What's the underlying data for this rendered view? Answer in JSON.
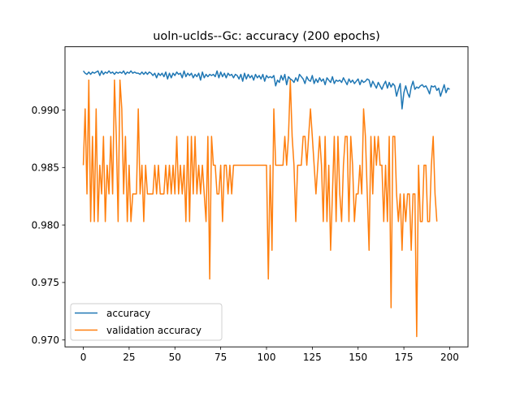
{
  "chart_data": {
    "type": "line",
    "title": "uoln-uclds--Gc: accuracy (200 epochs)",
    "xlabel": "",
    "ylabel": "",
    "xlim": [
      -10,
      210
    ],
    "ylim": [
      0.9694,
      0.9955
    ],
    "xticks": [
      0,
      25,
      50,
      75,
      100,
      125,
      150,
      175,
      200
    ],
    "yticks": [
      0.97,
      0.975,
      0.98,
      0.985,
      0.99
    ],
    "ytick_labels": [
      "0.970",
      "0.975",
      "0.980",
      "0.985",
      "0.990"
    ],
    "grid": false,
    "legend_position": "lower-left",
    "series": [
      {
        "name": "accuracy",
        "color": "#1f77b4",
        "values": [
          0.9934,
          0.9932,
          0.9931,
          0.9933,
          0.9931,
          0.9933,
          0.9932,
          0.9933,
          0.9934,
          0.993,
          0.9934,
          0.9931,
          0.9933,
          0.9932,
          0.9934,
          0.9932,
          0.9933,
          0.9931,
          0.9933,
          0.9932,
          0.9933,
          0.9932,
          0.9934,
          0.9931,
          0.9933,
          0.9932,
          0.9934,
          0.9932,
          0.9933,
          0.9932,
          0.9932,
          0.9931,
          0.9933,
          0.9931,
          0.9933,
          0.9931,
          0.9933,
          0.9932,
          0.993,
          0.9932,
          0.9928,
          0.9932,
          0.993,
          0.9932,
          0.9929,
          0.9933,
          0.9927,
          0.9932,
          0.9928,
          0.9932,
          0.993,
          0.9933,
          0.9931,
          0.9932,
          0.9928,
          0.9934,
          0.9929,
          0.9932,
          0.993,
          0.9932,
          0.9928,
          0.9931,
          0.9929,
          0.9932,
          0.9926,
          0.9933,
          0.9928,
          0.9931,
          0.9929,
          0.9931,
          0.993,
          0.9931,
          0.9929,
          0.9934,
          0.9928,
          0.9933,
          0.9929,
          0.9932,
          0.9928,
          0.9932,
          0.993,
          0.9931,
          0.9928,
          0.9931,
          0.993,
          0.9927,
          0.9931,
          0.9925,
          0.9932,
          0.9927,
          0.9931,
          0.9928,
          0.993,
          0.9926,
          0.9931,
          0.9928,
          0.993,
          0.9927,
          0.9931,
          0.9925,
          0.993,
          0.9928,
          0.9929,
          0.9928,
          0.993,
          0.9921,
          0.9926,
          0.9924,
          0.993,
          0.9926,
          0.9931,
          0.9922,
          0.9929,
          0.9927,
          0.9926,
          0.9924,
          0.9928,
          0.9925,
          0.9931,
          0.9929,
          0.9927,
          0.9923,
          0.9929,
          0.9926,
          0.9925,
          0.993,
          0.9923,
          0.9927,
          0.9924,
          0.9928,
          0.9925,
          0.9927,
          0.9922,
          0.9928,
          0.9926,
          0.9924,
          0.9929,
          0.9923,
          0.9926,
          0.9925,
          0.9926,
          0.9924,
          0.9928,
          0.9925,
          0.9922,
          0.9927,
          0.9924,
          0.9926,
          0.9923,
          0.9925,
          0.9927,
          0.9922,
          0.9926,
          0.9924,
          0.9925,
          0.9927,
          0.9926,
          0.992,
          0.9925,
          0.9922,
          0.9919,
          0.9924,
          0.9921,
          0.9918,
          0.9922,
          0.9925,
          0.9919,
          0.9924,
          0.992,
          0.9923,
          0.9921,
          0.9912,
          0.9918,
          0.9923,
          0.9901,
          0.9915,
          0.9921,
          0.9915,
          0.9911,
          0.992,
          0.9925,
          0.9918,
          0.992,
          0.9919,
          0.9921,
          0.9922,
          0.992,
          0.9921,
          0.9918,
          0.9914,
          0.9921,
          0.992,
          0.9921,
          0.9917,
          0.9919,
          0.9912,
          0.9917,
          0.9922,
          0.9915,
          0.9919,
          0.9918
        ]
      },
      {
        "name": "validation accuracy",
        "color": "#ff7f0e",
        "values": [
          0.9852,
          0.9901,
          0.9827,
          0.9926,
          0.9803,
          0.9877,
          0.9803,
          0.9901,
          0.9803,
          0.9852,
          0.9827,
          0.9877,
          0.9803,
          0.9852,
          0.9827,
          0.9877,
          0.9827,
          0.9926,
          0.9877,
          0.9803,
          0.9926,
          0.9901,
          0.9827,
          0.9877,
          0.9803,
          0.9852,
          0.9803,
          0.9827,
          0.9827,
          0.9827,
          0.9901,
          0.9827,
          0.9852,
          0.9803,
          0.9852,
          0.9827,
          0.9827,
          0.9827,
          0.9827,
          0.9852,
          0.9827,
          0.9852,
          0.9827,
          0.9827,
          0.9827,
          0.9852,
          0.9827,
          0.9852,
          0.9827,
          0.9852,
          0.9827,
          0.9877,
          0.9827,
          0.9852,
          0.9827,
          0.9852,
          0.9803,
          0.9877,
          0.9803,
          0.9877,
          0.9827,
          0.9877,
          0.9827,
          0.9852,
          0.9827,
          0.9852,
          0.9827,
          0.9803,
          0.9877,
          0.9753,
          0.9877,
          0.9852,
          0.9852,
          0.9827,
          0.9827,
          0.9852,
          0.9803,
          0.9852,
          0.9852,
          0.9827,
          0.9852,
          0.9827,
          0.9852,
          0.9852,
          0.9852,
          0.9852,
          0.9852,
          0.9852,
          0.9852,
          0.9852,
          0.9852,
          0.9852,
          0.9852,
          0.9852,
          0.9852,
          0.9852,
          0.9852,
          0.9852,
          0.9852,
          0.9852,
          0.9852,
          0.9753,
          0.9852,
          0.9778,
          0.9901,
          0.9852,
          0.9852,
          0.9852,
          0.9852,
          0.9852,
          0.9877,
          0.9852,
          0.9877,
          0.9926,
          0.9877,
          0.9852,
          0.9803,
          0.9852,
          0.9852,
          0.9852,
          0.9877,
          0.9877,
          0.9852,
          0.9877,
          0.9901,
          0.9877,
          0.9852,
          0.9827,
          0.9852,
          0.9877,
          0.9852,
          0.9803,
          0.9877,
          0.9803,
          0.9852,
          0.9778,
          0.9827,
          0.9877,
          0.9803,
          0.9877,
          0.9827,
          0.9803,
          0.9852,
          0.9877,
          0.9877,
          0.9803,
          0.9877,
          0.9852,
          0.9803,
          0.9827,
          0.9827,
          0.9852,
          0.9827,
          0.9901,
          0.9877,
          0.9827,
          0.9778,
          0.9877,
          0.9827,
          0.9877,
          0.9852,
          0.9877,
          0.9852,
          0.9852,
          0.9803,
          0.9852,
          0.9803,
          0.9877,
          0.9728,
          0.9877,
          0.9877,
          0.9827,
          0.9803,
          0.9827,
          0.9778,
          0.9827,
          0.9803,
          0.9827,
          0.9827,
          0.9778,
          0.9827,
          0.9827,
          0.9703,
          0.9852,
          0.9803,
          0.9803,
          0.9852,
          0.9852,
          0.9803,
          0.9803,
          0.9852,
          0.9877,
          0.9827,
          0.9803
        ]
      }
    ]
  }
}
